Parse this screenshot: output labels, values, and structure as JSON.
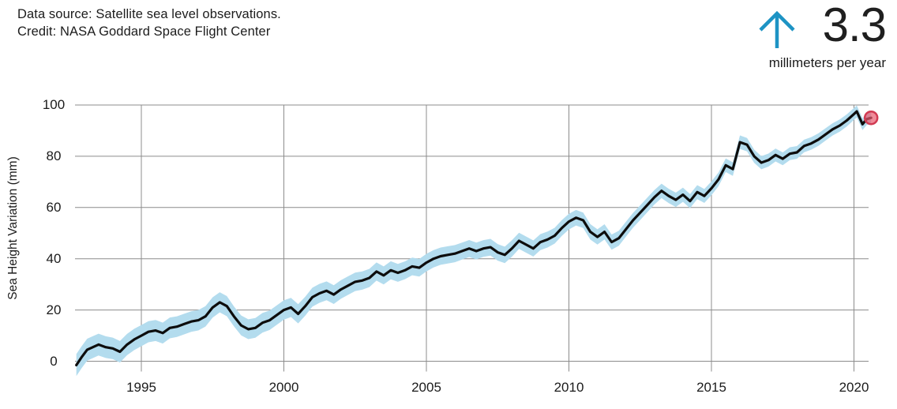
{
  "header": {
    "source_line1": "Data source: Satellite sea level observations.",
    "source_line2": "Credit: NASA Goddard Space Flight Center",
    "rate_value": "3.3",
    "rate_unit": "millimeters per year",
    "arrow_color": "#1d93c4"
  },
  "chart_data": {
    "type": "line",
    "ylabel": "Sea Height Variation (mm)",
    "xlabel": "",
    "xticks": [
      1995,
      2000,
      2005,
      2010,
      2015,
      2020
    ],
    "yticks": [
      0,
      20,
      40,
      60,
      80,
      100
    ],
    "xlim": [
      1992.7,
      2021.2
    ],
    "ylim": [
      -4,
      100
    ],
    "grid": true,
    "legend": "none",
    "uncertainty_mm": {
      "start": 4.3,
      "end": 2.3
    },
    "colors": {
      "line": "#0d0d0d",
      "band": "#b3dcee",
      "grid": "#8c8c8c",
      "marker_fill": "#ea5a6e",
      "marker_stroke": "#d13a52"
    },
    "series": [
      {
        "name": "Sea height variation (mm)",
        "x": [
          1992.72,
          1992.9,
          1993.1,
          1993.3,
          1993.5,
          1993.75,
          1994.0,
          1994.25,
          1994.5,
          1994.75,
          1995.0,
          1995.25,
          1995.5,
          1995.75,
          1996.0,
          1996.25,
          1996.5,
          1996.75,
          1997.0,
          1997.25,
          1997.5,
          1997.75,
          1998.0,
          1998.25,
          1998.5,
          1998.75,
          1999.0,
          1999.25,
          1999.5,
          1999.75,
          2000.0,
          2000.25,
          2000.5,
          2000.75,
          2001.0,
          2001.25,
          2001.5,
          2001.75,
          2002.0,
          2002.25,
          2002.5,
          2002.75,
          2003.0,
          2003.25,
          2003.5,
          2003.75,
          2004.0,
          2004.25,
          2004.5,
          2004.75,
          2005.0,
          2005.25,
          2005.5,
          2005.75,
          2006.0,
          2006.25,
          2006.5,
          2006.75,
          2007.0,
          2007.25,
          2007.5,
          2007.75,
          2008.0,
          2008.25,
          2008.5,
          2008.75,
          2009.0,
          2009.25,
          2009.5,
          2009.75,
          2010.0,
          2010.25,
          2010.5,
          2010.75,
          2011.0,
          2011.25,
          2011.5,
          2011.75,
          2012.0,
          2012.25,
          2012.5,
          2012.75,
          2013.0,
          2013.25,
          2013.5,
          2013.75,
          2014.0,
          2014.25,
          2014.5,
          2014.75,
          2015.0,
          2015.25,
          2015.5,
          2015.75,
          2016.0,
          2016.25,
          2016.5,
          2016.75,
          2017.0,
          2017.25,
          2017.5,
          2017.75,
          2018.0,
          2018.25,
          2018.5,
          2018.75,
          2019.0,
          2019.25,
          2019.5,
          2019.75,
          2020.0,
          2020.1,
          2020.3,
          2020.45,
          2020.6
        ],
        "y": [
          -1.5,
          1.5,
          4.5,
          5.5,
          6.5,
          5.5,
          5.0,
          3.7,
          6.5,
          8.5,
          10.0,
          11.5,
          12.0,
          11.0,
          13.0,
          13.5,
          14.5,
          15.5,
          16.0,
          17.5,
          21.0,
          23.0,
          21.5,
          17.5,
          14.0,
          12.5,
          13.0,
          15.0,
          16.0,
          18.0,
          20.0,
          21.0,
          18.5,
          21.5,
          25.0,
          26.5,
          27.5,
          26.0,
          28.0,
          29.5,
          31.0,
          31.5,
          32.5,
          35.0,
          33.5,
          35.5,
          34.5,
          35.5,
          37.0,
          36.5,
          38.5,
          40.0,
          41.0,
          41.5,
          42.0,
          43.0,
          44.0,
          43.0,
          44.0,
          44.5,
          42.5,
          41.5,
          44.0,
          47.0,
          45.5,
          44.0,
          46.5,
          47.5,
          49.0,
          52.0,
          54.5,
          56.0,
          55.0,
          50.5,
          48.5,
          50.5,
          46.5,
          48.0,
          51.5,
          55.0,
          58.0,
          61.0,
          64.0,
          66.5,
          64.5,
          63.0,
          65.0,
          62.5,
          66.0,
          64.5,
          67.5,
          71.0,
          76.5,
          75.0,
          85.5,
          84.5,
          80.0,
          77.5,
          78.5,
          80.5,
          79.0,
          81.0,
          81.5,
          84.0,
          85.0,
          86.5,
          88.5,
          90.5,
          92.0,
          94.0,
          96.5,
          97.5,
          92.5,
          94.5,
          95.0
        ]
      }
    ],
    "annotations": [
      {
        "text": "3.3 millimeters per year",
        "role": "trend-rate"
      }
    ]
  }
}
